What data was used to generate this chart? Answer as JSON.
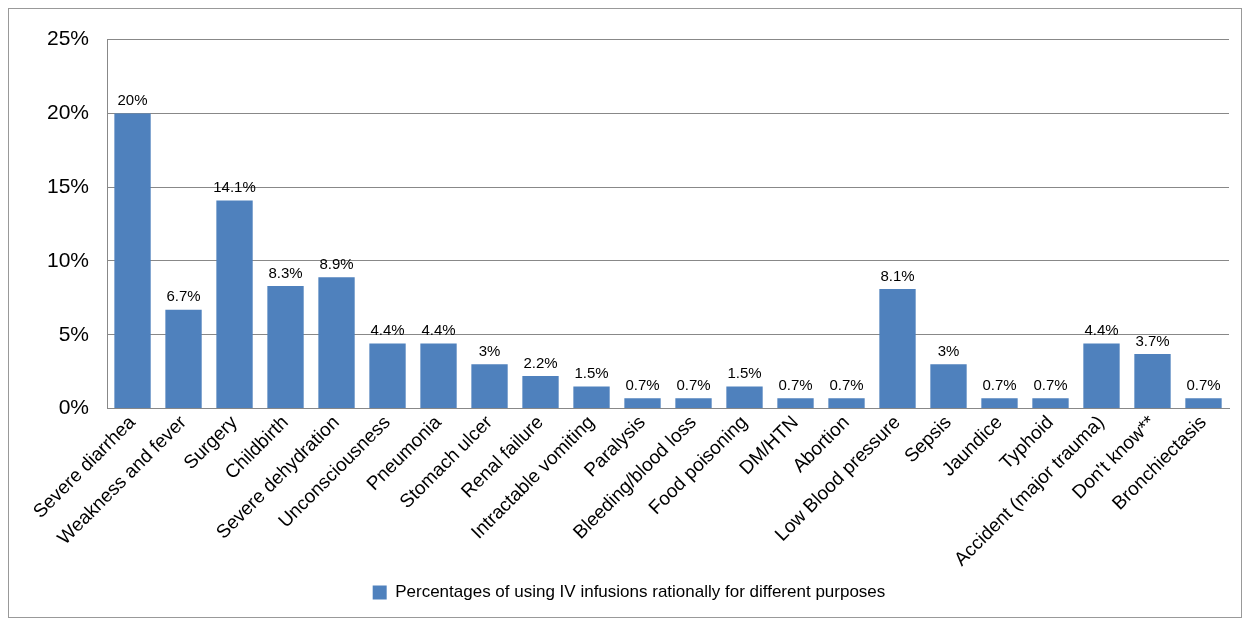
{
  "chart_data": {
    "type": "bar",
    "categories": [
      "Severe diarrhea",
      "Weakness and fever",
      "Surgery",
      "Childbirth",
      "Severe dehydration",
      "Unconsciousness",
      "Pneumonia",
      "Stomach ulcer",
      "Renal failure",
      "Intractable vomiting",
      "Paralysis",
      "Bleeding/blood loss",
      "Food poisoning",
      "DM/HTN",
      "Abortion",
      "Low Blood pressure",
      "Sepsis",
      "Jaundice",
      "Typhoid",
      "Accident (major trauma)",
      "Don't know**",
      "Bronchiectasis"
    ],
    "series": [
      {
        "name": "Percentages of using IV infusions rationally for different purposes",
        "color": "#4f81bd",
        "values": [
          20,
          6.7,
          14.1,
          8.3,
          8.9,
          4.4,
          4.4,
          3,
          2.2,
          1.5,
          0.7,
          0.7,
          1.5,
          0.7,
          0.7,
          8.1,
          3,
          0.7,
          0.7,
          4.4,
          3.7,
          0.7
        ],
        "value_labels": [
          "20%",
          "6.7%",
          "14.1%",
          "8.3%",
          "8.9%",
          "4.4%",
          "4.4%",
          "3%",
          "2.2%",
          "1.5%",
          "0.7%",
          "0.7%",
          "1.5%",
          "0.7%",
          "0.7%",
          "8.1%",
          "3%",
          "0.7%",
          "0.7%",
          "4.4%",
          "3.7%",
          "0.7%"
        ]
      }
    ],
    "ylim": [
      0,
      25
    ],
    "yticks": [
      {
        "value": 0,
        "label": "0%"
      },
      {
        "value": 5,
        "label": "5%"
      },
      {
        "value": 10,
        "label": "10%"
      },
      {
        "value": 15,
        "label": "15%"
      },
      {
        "value": 20,
        "label": "20%"
      },
      {
        "value": 25,
        "label": "25%"
      }
    ],
    "grid": "y",
    "legend": "bottom"
  }
}
